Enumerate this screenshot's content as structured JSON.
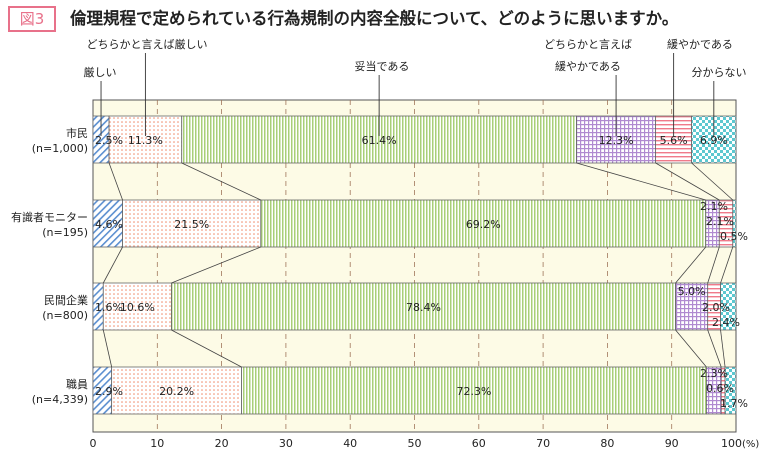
{
  "figure_label": "図3",
  "title": "倫理規程で定められている行為規制の内容全般について、どのように思いますか。",
  "chart_data": {
    "type": "bar",
    "orientation": "horizontal",
    "stacked": true,
    "unit_label": "(%)",
    "xlim": [
      0,
      100
    ],
    "xticks": [
      "0",
      "10",
      "20",
      "30",
      "40",
      "50",
      "60",
      "70",
      "80",
      "90",
      "100"
    ],
    "grid": true,
    "categories": [
      {
        "name": "市民",
        "n": "(n=1,000)"
      },
      {
        "name": "有識者モニター",
        "n": "(n=195)"
      },
      {
        "name": "民間企業",
        "n": "(n=800)"
      },
      {
        "name": "職員",
        "n": "(n=4,339)"
      }
    ],
    "series": [
      {
        "name": "厳しい",
        "values": [
          2.5,
          4.6,
          1.6,
          2.9
        ],
        "color": "#5b8fd0",
        "pattern": "diagonal"
      },
      {
        "name": "どちらかと言えば厳しい",
        "values": [
          11.3,
          21.5,
          10.6,
          20.2
        ],
        "color": "#f08a6a",
        "pattern": "dots"
      },
      {
        "name": "妥当である",
        "values": [
          61.4,
          69.2,
          78.4,
          72.3
        ],
        "color": "#9cc66a",
        "pattern": "vertical"
      },
      {
        "name": "どちらかと言えば緩やかである",
        "name_lines": [
          "どちらかと言えば",
          "緩やかである"
        ],
        "values": [
          12.3,
          2.1,
          5.0,
          2.3
        ],
        "color": "#b08ad0",
        "pattern": "grid"
      },
      {
        "name": "緩やかである",
        "values": [
          5.6,
          2.1,
          2.0,
          0.6
        ],
        "color": "#f07a8a",
        "pattern": "horizontal"
      },
      {
        "name": "分からない",
        "values": [
          6.9,
          0.5,
          2.4,
          1.7
        ],
        "color": "#5cc8d0",
        "pattern": "checker"
      }
    ],
    "background": "#fdfbe6"
  }
}
